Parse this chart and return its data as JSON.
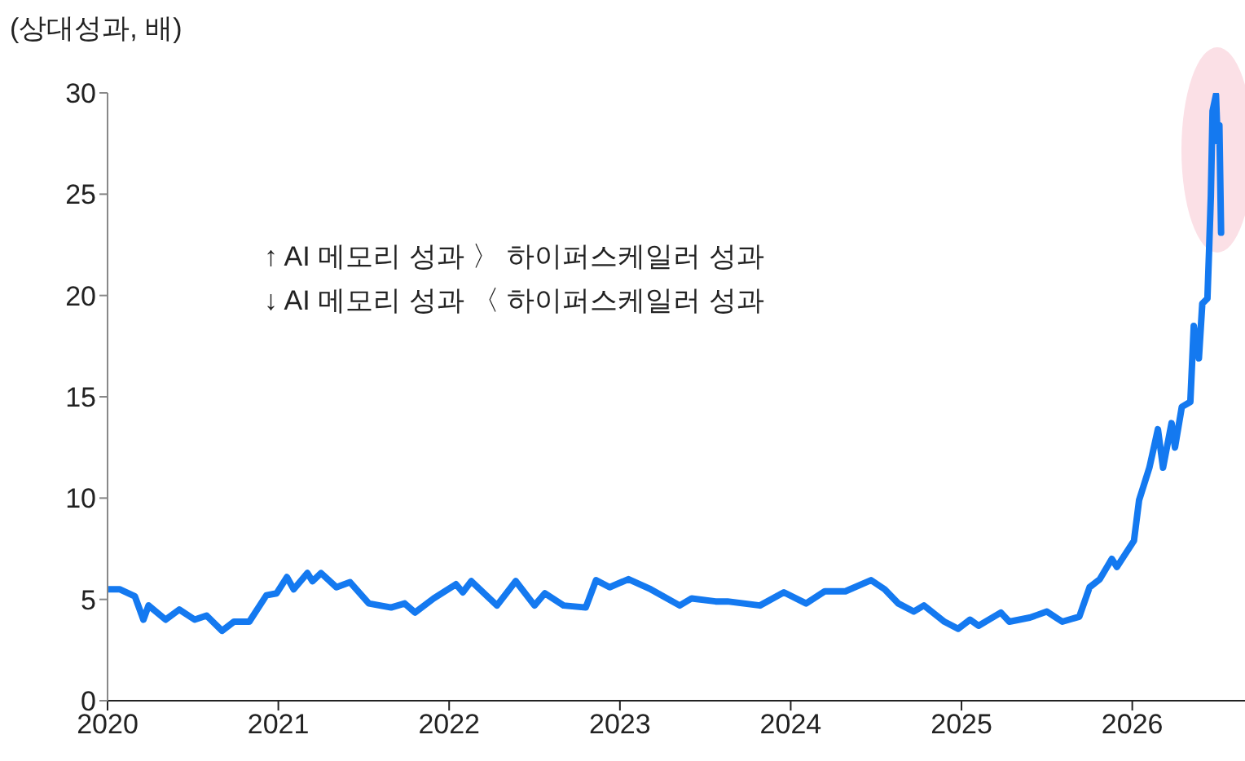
{
  "chart_data": {
    "type": "line",
    "ylabel": "(상대성과, 배)",
    "annotations": [
      "↑ AI 메모리 성과 〉 하이퍼스케일러 성과",
      "↓ AI 메모리 성과 〈 하이퍼스케일러 성과"
    ],
    "xlim": [
      2020,
      2026.66
    ],
    "xticks": [
      2020,
      2021,
      2022,
      2023,
      2024,
      2025,
      2026
    ],
    "ylim": [
      0,
      30
    ],
    "yticks": [
      0,
      5,
      10,
      15,
      20,
      25,
      30
    ],
    "grid": false,
    "legend": false,
    "marker": "none",
    "line_style": "solid",
    "series": [
      {
        "color": "#1479f0",
        "x": [
          2020.0,
          2020.07,
          2020.16,
          2020.21,
          2020.24,
          2020.34,
          2020.42,
          2020.51,
          2020.58,
          2020.67,
          2020.74,
          2020.83,
          2020.93,
          2020.99,
          2021.05,
          2021.09,
          2021.17,
          2021.2,
          2021.25,
          2021.34,
          2021.42,
          2021.53,
          2021.66,
          2021.74,
          2021.8,
          2021.91,
          2022.04,
          2022.08,
          2022.13,
          2022.28,
          2022.39,
          2022.5,
          2022.56,
          2022.67,
          2022.8,
          2022.86,
          2022.94,
          2023.05,
          2023.18,
          2023.35,
          2023.42,
          2023.56,
          2023.63,
          2023.82,
          2023.96,
          2024.09,
          2024.2,
          2024.32,
          2024.47,
          2024.55,
          2024.63,
          2024.72,
          2024.78,
          2024.9,
          2024.98,
          2025.05,
          2025.1,
          2025.23,
          2025.28,
          2025.4,
          2025.5,
          2025.59,
          2025.69,
          2025.75,
          2025.81,
          2025.88,
          2025.91,
          2026.01,
          2026.04,
          2026.1,
          2026.15,
          2026.18,
          2026.23,
          2026.25,
          2026.29,
          2026.34,
          2026.36,
          2026.39,
          2026.41,
          2026.44,
          2026.45,
          2026.46,
          2026.47,
          2026.49,
          2026.5,
          2026.51,
          2026.52
        ],
        "values": [
          5.5,
          5.5,
          5.15,
          4.0,
          4.7,
          4.0,
          4.5,
          4.0,
          4.2,
          3.45,
          3.9,
          3.9,
          5.2,
          5.3,
          6.1,
          5.5,
          6.3,
          5.9,
          6.3,
          5.6,
          5.85,
          4.8,
          4.6,
          4.8,
          4.35,
          5.05,
          5.75,
          5.35,
          5.9,
          4.7,
          5.9,
          4.7,
          5.3,
          4.7,
          4.6,
          5.95,
          5.6,
          6.0,
          5.5,
          4.7,
          5.05,
          4.9,
          4.9,
          4.7,
          5.35,
          4.8,
          5.4,
          5.4,
          5.95,
          5.5,
          4.8,
          4.4,
          4.7,
          3.9,
          3.55,
          4.0,
          3.7,
          4.35,
          3.9,
          4.1,
          4.4,
          3.9,
          4.15,
          5.6,
          6.0,
          7.0,
          6.6,
          7.9,
          9.9,
          11.5,
          13.4,
          11.5,
          13.7,
          12.5,
          14.5,
          14.75,
          18.5,
          16.9,
          19.6,
          19.85,
          22.3,
          24.9,
          29.1,
          29.9,
          27.6,
          28.4,
          23.1
        ]
      }
    ]
  }
}
